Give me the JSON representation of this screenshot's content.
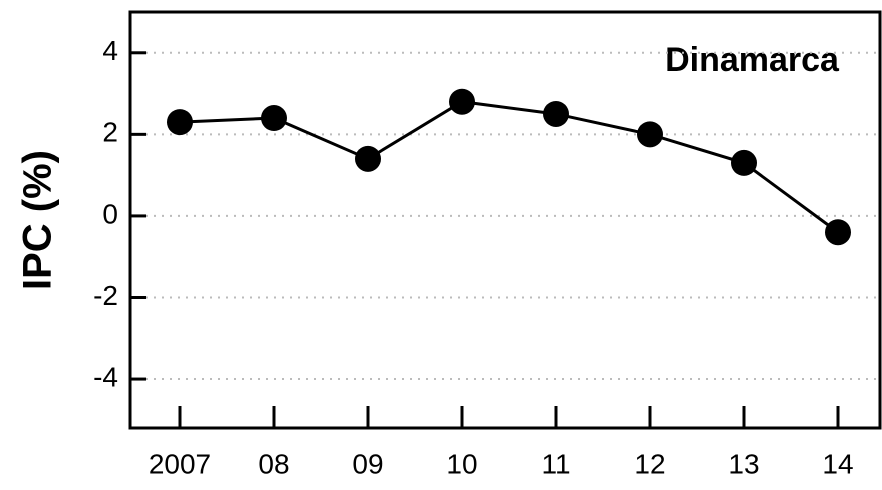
{
  "chart_data": {
    "type": "line",
    "y_label": "IPC (%)",
    "annotation": "Dinamarca",
    "categories": [
      "2007",
      "08",
      "09",
      "10",
      "11",
      "12",
      "13",
      "14"
    ],
    "series": [
      {
        "name": "Dinamarca",
        "color": "#000000",
        "values": [
          2.3,
          2.4,
          1.4,
          2.8,
          2.5,
          2.0,
          1.3,
          -0.4
        ]
      }
    ],
    "ylim": [
      -5.2,
      5
    ],
    "yticks": [
      -4,
      -2,
      0,
      2,
      4
    ],
    "grid": true,
    "legend": false
  }
}
